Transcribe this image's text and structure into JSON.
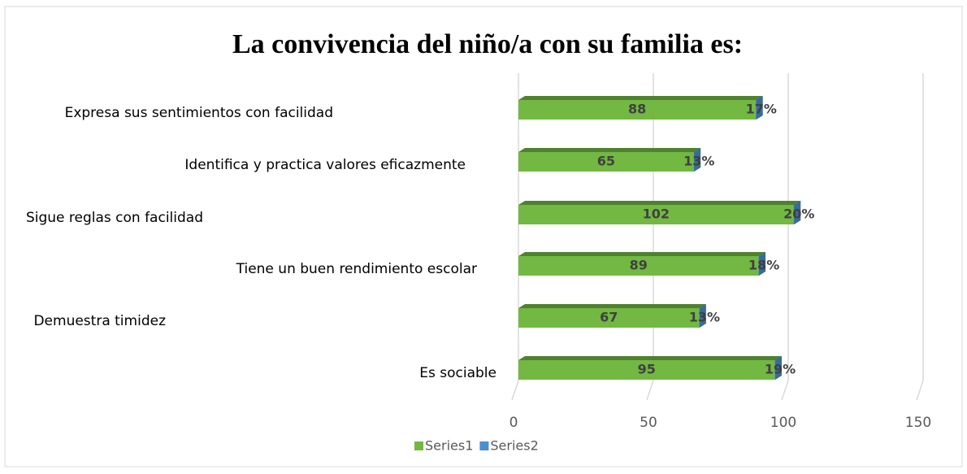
{
  "chart_data": {
    "type": "bar3d_stacked_horizontal",
    "title": "La convivencia del niño/a con su familia es:",
    "categories": [
      "Expresa sus sentimientos con facilidad",
      "Identifica y practica valores eficazmente",
      "Sigue reglas con facilidad",
      "Tiene un buen rendimiento escolar",
      "Demuestra timidez",
      "Es sociable"
    ],
    "series": [
      {
        "name": "Series1",
        "color": "#72b843",
        "values": [
          88,
          65,
          102,
          89,
          67,
          95
        ]
      },
      {
        "name": "Series2",
        "color": "#4a8fd1",
        "values": [
          0.17,
          0.13,
          0.2,
          0.18,
          0.13,
          0.19
        ],
        "value_labels": [
          "17%",
          "13%",
          "20%",
          "18%",
          "13%",
          "19%"
        ]
      }
    ],
    "xlim": [
      0,
      150
    ],
    "xticks": [
      0,
      50,
      100,
      150
    ],
    "grid": true,
    "legend": "bottom"
  }
}
